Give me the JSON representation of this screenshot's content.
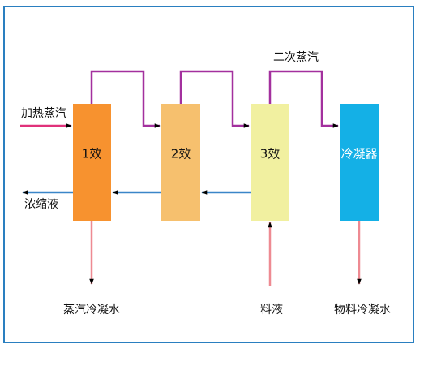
{
  "nodes": [
    {
      "label": "1效"
    },
    {
      "label": "2效"
    },
    {
      "label": "3效"
    },
    {
      "label": "冷凝器"
    }
  ],
  "labels": {
    "heating_steam": "加热蒸汽",
    "secondary_steam": "二次蒸汽",
    "concentrate": "浓缩液",
    "steam_condensate": "蒸汽冷凝水",
    "feed": "料液",
    "material_condensate": "物料冷凝水"
  }
}
